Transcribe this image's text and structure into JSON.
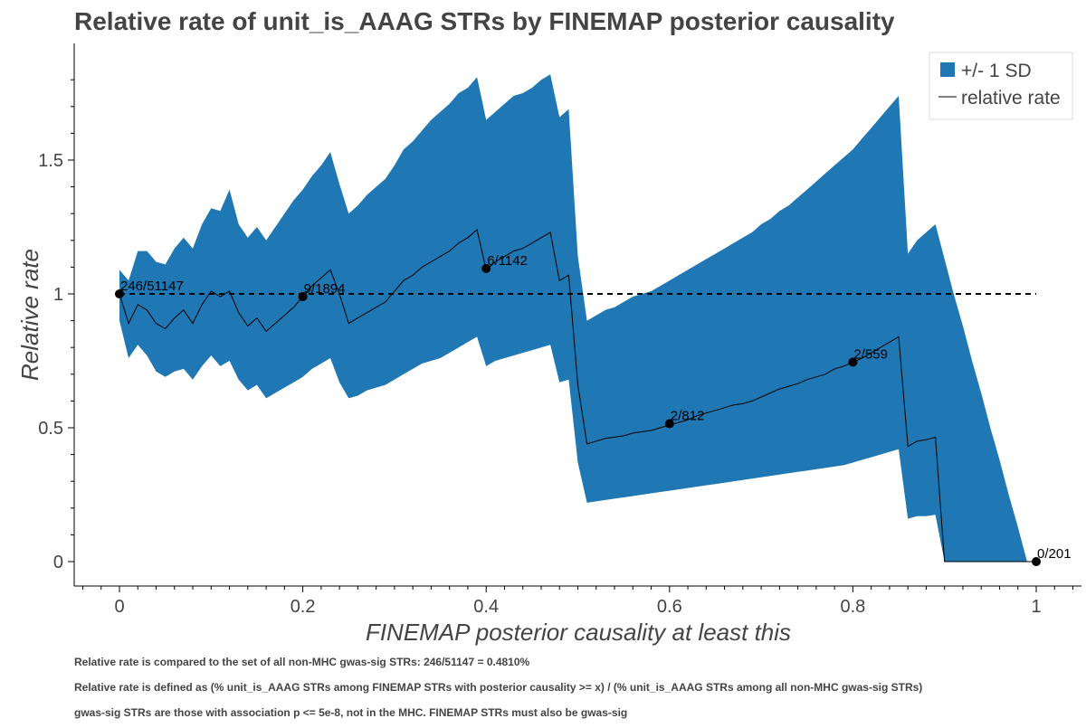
{
  "chart_data": {
    "type": "line",
    "title": "Relative rate of unit_is_AAAG STRs by FINEMAP posterior causality",
    "xlabel": "FINEMAP posterior causality at least this",
    "ylabel": "Relative rate",
    "xlim": [
      -0.05,
      1.05
    ],
    "ylim": [
      -0.09,
      1.9
    ],
    "xticks": [
      0,
      0.2,
      0.4,
      0.6,
      0.8,
      1
    ],
    "xtick_labels": [
      "0",
      "0.2",
      "0.4",
      "0.6",
      "0.8",
      "1"
    ],
    "yticks": [
      0,
      0.5,
      1,
      1.5
    ],
    "ytick_labels": [
      "0",
      "0.5",
      "1",
      "1.5"
    ],
    "grid": false,
    "legend_position": "top-right",
    "legend": [
      "+/- 1 SD",
      "relative rate"
    ],
    "colors": {
      "band": "#1f77b4",
      "line": "#000000",
      "reference": "#000000",
      "text": "#444444"
    },
    "reference_line": {
      "y": 1,
      "style": "dashed"
    },
    "series": [
      {
        "name": "relative rate",
        "x": [
          0,
          0.01,
          0.02,
          0.03,
          0.04,
          0.05,
          0.06,
          0.07,
          0.08,
          0.09,
          0.1,
          0.11,
          0.12,
          0.13,
          0.14,
          0.15,
          0.16,
          0.17,
          0.18,
          0.19,
          0.2,
          0.21,
          0.22,
          0.23,
          0.24,
          0.25,
          0.26,
          0.27,
          0.28,
          0.29,
          0.3,
          0.31,
          0.32,
          0.33,
          0.34,
          0.35,
          0.36,
          0.37,
          0.38,
          0.39,
          0.4,
          0.41,
          0.42,
          0.43,
          0.44,
          0.45,
          0.46,
          0.47,
          0.48,
          0.49,
          0.5,
          0.51,
          0.52,
          0.53,
          0.54,
          0.55,
          0.56,
          0.57,
          0.58,
          0.59,
          0.6,
          0.61,
          0.62,
          0.63,
          0.64,
          0.65,
          0.66,
          0.67,
          0.68,
          0.69,
          0.7,
          0.71,
          0.72,
          0.73,
          0.74,
          0.75,
          0.76,
          0.77,
          0.78,
          0.79,
          0.8,
          0.81,
          0.82,
          0.83,
          0.84,
          0.85,
          0.86,
          0.87,
          0.88,
          0.89,
          0.9,
          0.91,
          0.92,
          0.93,
          0.94,
          0.95,
          0.96,
          0.97,
          0.98,
          0.99,
          1
        ],
        "values": [
          1.0,
          0.89,
          0.96,
          0.94,
          0.89,
          0.87,
          0.91,
          0.94,
          0.89,
          0.96,
          1.01,
          0.99,
          1.01,
          0.93,
          0.88,
          0.91,
          0.86,
          0.89,
          0.92,
          0.95,
          0.99,
          1.03,
          1.06,
          1.09,
          1.0,
          0.89,
          0.91,
          0.93,
          0.95,
          0.97,
          1.01,
          1.05,
          1.07,
          1.1,
          1.12,
          1.14,
          1.16,
          1.19,
          1.21,
          1.24,
          1.09,
          1.12,
          1.14,
          1.16,
          1.17,
          1.19,
          1.21,
          1.23,
          1.05,
          1.07,
          0.66,
          0.44,
          0.45,
          0.46,
          0.465,
          0.47,
          0.48,
          0.485,
          0.49,
          0.5,
          0.51,
          0.52,
          0.53,
          0.545,
          0.555,
          0.565,
          0.575,
          0.585,
          0.59,
          0.6,
          0.615,
          0.63,
          0.645,
          0.655,
          0.665,
          0.68,
          0.69,
          0.7,
          0.72,
          0.73,
          0.745,
          0.76,
          0.78,
          0.8,
          0.82,
          0.84,
          0.43,
          0.45,
          0.455,
          0.465,
          0.0,
          0.0,
          0.0,
          0.0,
          0.0,
          0.0,
          0.0,
          0.0,
          0.0,
          0.0,
          0.0
        ]
      },
      {
        "name": "+/- 1 SD",
        "x": [
          0,
          0.01,
          0.02,
          0.03,
          0.04,
          0.05,
          0.06,
          0.07,
          0.08,
          0.09,
          0.1,
          0.11,
          0.12,
          0.13,
          0.14,
          0.15,
          0.16,
          0.17,
          0.18,
          0.19,
          0.2,
          0.21,
          0.22,
          0.23,
          0.24,
          0.25,
          0.26,
          0.27,
          0.28,
          0.29,
          0.3,
          0.31,
          0.32,
          0.33,
          0.34,
          0.35,
          0.36,
          0.37,
          0.38,
          0.39,
          0.4,
          0.41,
          0.42,
          0.43,
          0.44,
          0.45,
          0.46,
          0.47,
          0.48,
          0.49,
          0.5,
          0.51,
          0.52,
          0.53,
          0.54,
          0.55,
          0.56,
          0.57,
          0.58,
          0.59,
          0.6,
          0.61,
          0.62,
          0.63,
          0.64,
          0.65,
          0.66,
          0.67,
          0.68,
          0.69,
          0.7,
          0.71,
          0.72,
          0.73,
          0.74,
          0.75,
          0.76,
          0.77,
          0.78,
          0.79,
          0.8,
          0.81,
          0.82,
          0.83,
          0.84,
          0.85,
          0.86,
          0.87,
          0.88,
          0.89,
          0.9,
          0.91,
          0.92,
          0.93,
          0.94,
          0.95,
          0.96,
          0.97,
          0.98,
          0.99,
          1
        ],
        "upper": [
          1.09,
          1.05,
          1.16,
          1.16,
          1.12,
          1.11,
          1.17,
          1.21,
          1.17,
          1.26,
          1.32,
          1.31,
          1.39,
          1.26,
          1.21,
          1.25,
          1.2,
          1.25,
          1.3,
          1.35,
          1.39,
          1.44,
          1.48,
          1.53,
          1.41,
          1.3,
          1.33,
          1.37,
          1.4,
          1.43,
          1.48,
          1.54,
          1.57,
          1.61,
          1.65,
          1.68,
          1.71,
          1.75,
          1.77,
          1.81,
          1.65,
          1.68,
          1.71,
          1.74,
          1.75,
          1.77,
          1.8,
          1.82,
          1.66,
          1.69,
          1.14,
          0.9,
          0.92,
          0.94,
          0.95,
          0.97,
          0.99,
          1.0,
          1.01,
          1.03,
          1.05,
          1.07,
          1.09,
          1.11,
          1.13,
          1.15,
          1.17,
          1.19,
          1.21,
          1.23,
          1.26,
          1.28,
          1.31,
          1.33,
          1.36,
          1.39,
          1.42,
          1.45,
          1.48,
          1.51,
          1.54,
          1.58,
          1.62,
          1.66,
          1.7,
          1.74,
          1.15,
          1.2,
          1.23,
          1.26,
          1.13,
          1.0,
          0.88,
          0.75,
          0.63,
          0.5,
          0.38,
          0.25,
          0.13,
          0.0,
          0.0
        ],
        "lower": [
          0.9,
          0.76,
          0.81,
          0.77,
          0.71,
          0.69,
          0.71,
          0.72,
          0.68,
          0.73,
          0.77,
          0.73,
          0.75,
          0.68,
          0.64,
          0.66,
          0.61,
          0.63,
          0.65,
          0.67,
          0.69,
          0.72,
          0.74,
          0.76,
          0.67,
          0.61,
          0.62,
          0.64,
          0.65,
          0.66,
          0.68,
          0.7,
          0.72,
          0.74,
          0.75,
          0.76,
          0.78,
          0.8,
          0.82,
          0.84,
          0.73,
          0.75,
          0.76,
          0.77,
          0.78,
          0.79,
          0.8,
          0.81,
          0.67,
          0.68,
          0.37,
          0.22,
          0.225,
          0.23,
          0.235,
          0.24,
          0.245,
          0.25,
          0.255,
          0.26,
          0.265,
          0.27,
          0.275,
          0.28,
          0.285,
          0.29,
          0.295,
          0.3,
          0.305,
          0.31,
          0.315,
          0.32,
          0.325,
          0.33,
          0.335,
          0.34,
          0.345,
          0.35,
          0.355,
          0.36,
          0.37,
          0.38,
          0.39,
          0.4,
          0.41,
          0.42,
          0.16,
          0.17,
          0.17,
          0.175,
          0.0,
          0.0,
          0.0,
          0.0,
          0.0,
          0.0,
          0.0,
          0.0,
          0.0,
          0.0,
          0.0
        ]
      }
    ],
    "points": [
      {
        "x": 0,
        "y": 1.0,
        "label": "246/51147"
      },
      {
        "x": 0.2,
        "y": 0.99,
        "label": "9/1894"
      },
      {
        "x": 0.4,
        "y": 1.095,
        "label": "6/1142"
      },
      {
        "x": 0.6,
        "y": 0.515,
        "label": "2/812"
      },
      {
        "x": 0.8,
        "y": 0.745,
        "label": "2/559"
      },
      {
        "x": 1,
        "y": 0.0,
        "label": "0/201"
      }
    ],
    "footnotes": [
      "Relative rate is compared to the set of all non-MHC gwas-sig STRs: 246/51147 = 0.4810%",
      "Relative rate is defined as (% unit_is_AAAG STRs among FINEMAP STRs with posterior causality >= x) / (% unit_is_AAAG STRs among all non-MHC gwas-sig STRs)",
      "gwas-sig STRs are those with association p <= 5e-8, not in the MHC. FINEMAP STRs must also be gwas-sig"
    ]
  }
}
